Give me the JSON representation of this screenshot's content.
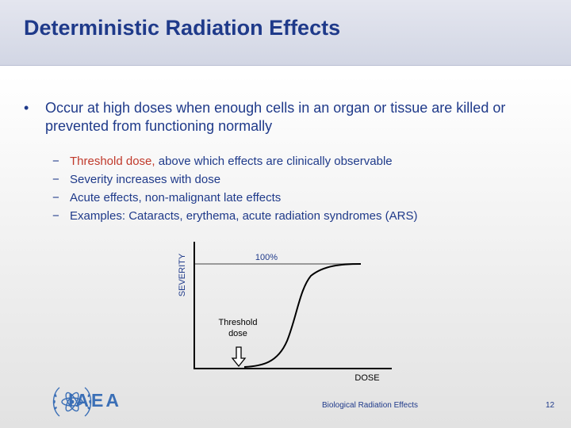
{
  "slide": {
    "title": "Deterministic Radiation Effects",
    "bullet_marker": "•",
    "bullet_text": "Occur at high doses when enough cells in an organ or tissue are killed or prevented from functioning normally",
    "sub_marker": "−",
    "sub_items": [
      {
        "highlight": "Threshold dose,",
        "rest": " above which effects are clinically observable"
      },
      {
        "highlight": "",
        "rest": "Severity increases with dose"
      },
      {
        "highlight": "",
        "rest": "Acute effects, non-malignant late effects"
      },
      {
        "highlight": "",
        "rest": "Examples: Cataracts, erythema, acute radiation syndromes (ARS)"
      }
    ],
    "colors": {
      "title": "#1f3a8a",
      "highlight": "#c0392b",
      "logo": "#3b6fb6"
    }
  },
  "diagram": {
    "y_axis_label": "SEVERITY",
    "x_axis_label": "DOSE",
    "plateau_label": "100%",
    "threshold_label_line1": "Threshold",
    "threshold_label_line2": "dose"
  },
  "footer": {
    "logo_text": "IAEA",
    "logo_icon": "atom-laurel-emblem-icon",
    "center_text": "Biological Radiation Effects",
    "page_number": "12"
  }
}
